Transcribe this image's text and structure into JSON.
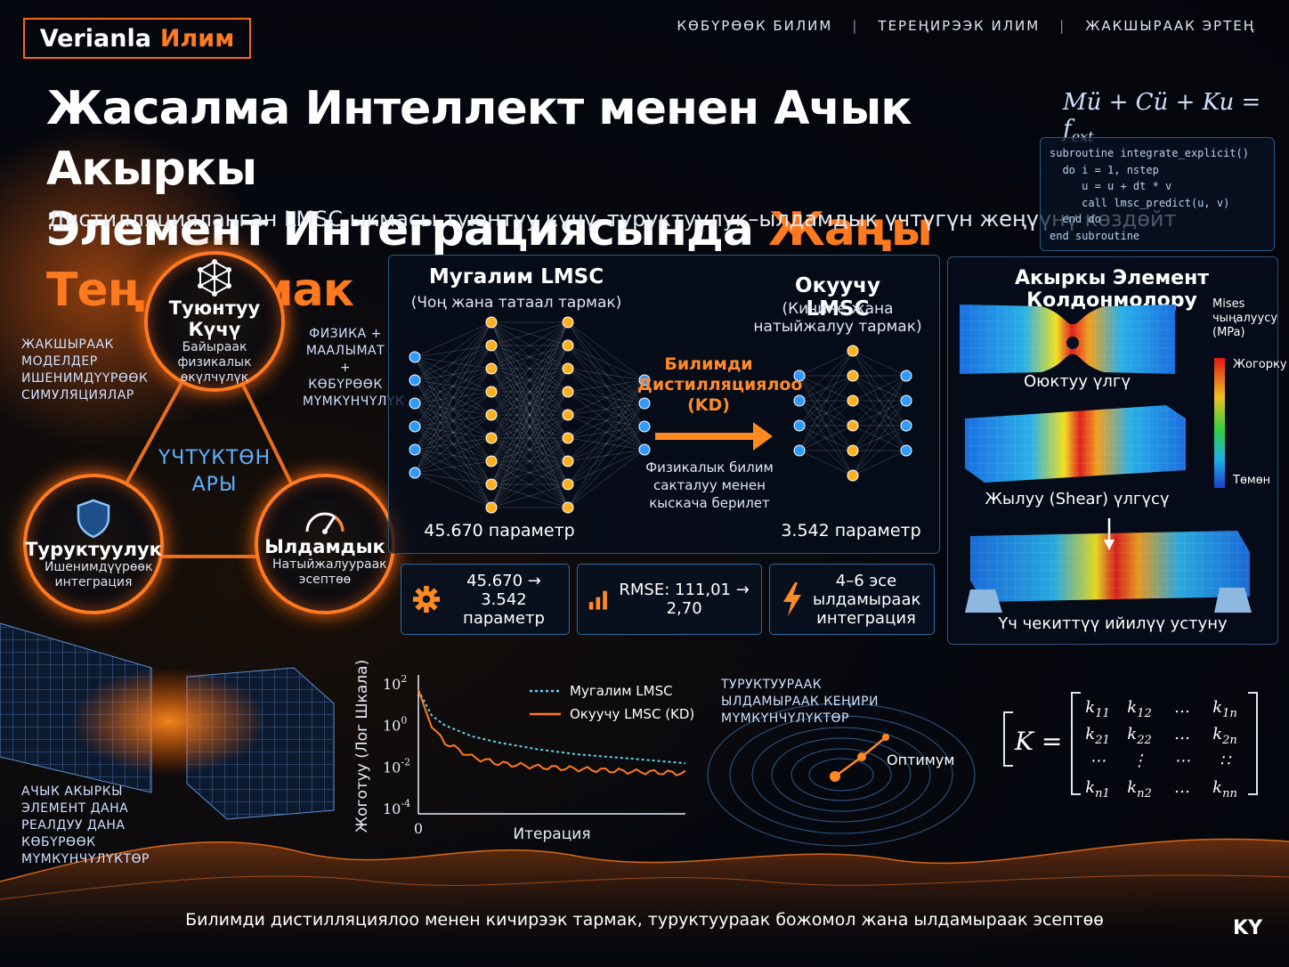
{
  "brand": {
    "name_a": "Verianla",
    "name_b": "Илим",
    "accent": "#ff7a1f"
  },
  "topnav": [
    "КӨБҮРӨӨК БИЛИМ",
    "ТЕРЕҢИРЭЭК ИЛИМ",
    "ЖАКШЫРААК ЭРТЕҢ"
  ],
  "title": {
    "line1": "Жасалма Интеллект менен Ачык Акыркы",
    "line2_plain": "Элемент Интеграциясында ",
    "line2_highlight": "Жаңы Тең Салмак"
  },
  "subtitle": "Дистилляцияланган LMSC ыкмасы туюнтуу күчү–туруктуулук–ылдамдык үчтүгүн жеңүүнү көздөйт",
  "formula": "Mü + Cü + Ku = f_ext",
  "code": "subroutine integrate_explicit()\n  do i = 1, nstep\n     u = u + dt * v\n     call lmsc_predict(u, v)\n  end do\nend subroutine",
  "triangle": {
    "top": {
      "title": "Туюнтуу Күчү",
      "sub": "Байыраак физикалык өкүлчүлүк",
      "icon": "network-icon"
    },
    "left": {
      "title": "Туруктуулук",
      "sub": "Ишенимдүүрөөк интеграция",
      "icon": "shield-icon"
    },
    "right": {
      "title": "Ылдамдык",
      "sub": "Натыйжалуураак эсептөө",
      "icon": "speedometer-icon"
    },
    "center": "ҮЧТҮКТӨН АРЫ",
    "left_note": "ЖАКШЫРААК МОДЕЛДЕР ИШЕНИМДҮҮРӨӨК СИМУЛЯЦИЯЛАР",
    "right_note": "ФИЗИКА + МААЛЫМАТ + КӨБҮРӨӨК МҮМКҮНЧҮЛҮК",
    "bottom_note": "АЧЫК АКЫРКЫ ЭЛЕМЕНТ ДАНА РЕАЛДУУ ДАНА КӨБҮРӨӨК МҮМКҮНЧҮЛҮКТӨР"
  },
  "kd": {
    "teacher_title": "Мугалим LMSC",
    "teacher_sub": "(Чоң жана татаал тармак)",
    "teacher_params": "45.670 параметр",
    "student_title": "Окуучу LMSC",
    "student_sub": "(Кичине жана натыйжалуу тармак)",
    "student_params": "3.542 параметр",
    "arrow_label": "Билимди Дистилляциялоо (KD)",
    "arrow_note": "Физикалык билим сакталуу менен кыскача берилет"
  },
  "stats": [
    {
      "icon": "gear-icon",
      "text": "45.670 → 3.542 параметр"
    },
    {
      "icon": "bar-chart-icon",
      "text": "RMSE: 111,01 → 2,70"
    },
    {
      "icon": "lightning-icon",
      "text": "4–6 эсе ылдамыраак интеграция"
    }
  ],
  "fe": {
    "title": "Акыркы Элемент Колдонмолору",
    "cases": [
      "Оюктуу үлгү",
      "Жылуу (Shear) үлгүсү",
      "Үч чекиттүү ийилүү устуну"
    ],
    "legend_title": "Mises чыңалуусу (MPa)",
    "legend_high": "Жогорку",
    "legend_low": "Төмөн"
  },
  "chart_data": {
    "type": "line",
    "ylabel": "Жоготуу (Лог Шкала)",
    "xlabel": "Итерация",
    "yscale": "log",
    "ylim": [
      0.0001,
      100
    ],
    "yticks": [
      "10^2",
      "10^0",
      "10^-2",
      "10^-4"
    ],
    "xticks": [
      "0"
    ],
    "series": [
      {
        "name": "Мугалим LMSC",
        "color": "#5fd3f0",
        "style": "dotted",
        "x": [
          0,
          5,
          10,
          20,
          30,
          45,
          60,
          80,
          100
        ],
        "y": [
          50,
          3,
          1,
          0.3,
          0.15,
          0.07,
          0.04,
          0.025,
          0.015
        ]
      },
      {
        "name": "Окуучу LMSC (KD)",
        "color": "#ff7a1f",
        "style": "solid",
        "x": [
          0,
          5,
          10,
          20,
          30,
          45,
          60,
          80,
          100
        ],
        "y": [
          50,
          0.8,
          0.15,
          0.03,
          0.015,
          0.01,
          0.008,
          0.006,
          0.005
        ]
      }
    ]
  },
  "landscape": {
    "note": "ТУРУКТУУРААК ЫЛДАМЫРААК КЕҢИРИ МҮМКҮНЧҮЛҮКТӨР",
    "optimum": "Оптимум"
  },
  "matrix": {
    "lhs": "K =",
    "rows": [
      [
        "k11",
        "k12",
        "…",
        "k1n"
      ],
      [
        "k21",
        "k22",
        "…",
        "k2n"
      ],
      [
        "⋯",
        "⋮",
        "⋯",
        "∷"
      ],
      [
        "kn1",
        "kn2",
        "…",
        "knn"
      ]
    ]
  },
  "footer": "Билимди дистилляциялоо менен кичирээк тармак, туруктуураак божомол жана ылдамыраак эсептөө",
  "lang": "KY"
}
